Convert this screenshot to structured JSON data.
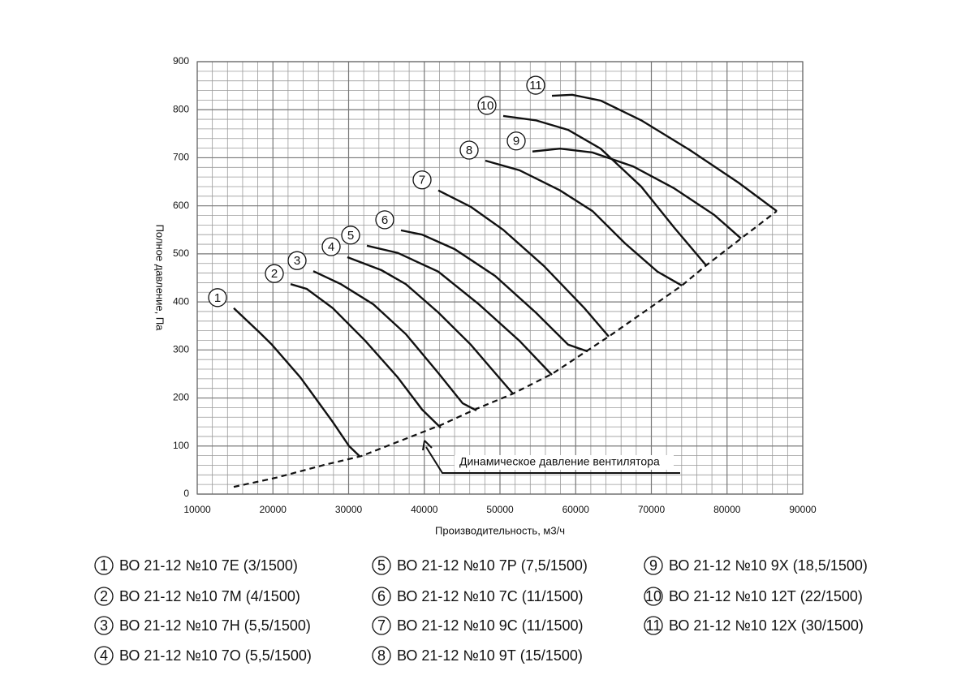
{
  "chart_data": {
    "type": "line",
    "xlabel": "Производительность, м3/ч",
    "ylabel": "Полное давление, Па",
    "xlim": [
      10000,
      90000
    ],
    "xticks": [
      10000,
      20000,
      30000,
      40000,
      50000,
      60000,
      70000,
      80000,
      90000
    ],
    "ylim": [
      0,
      900
    ],
    "yticks": [
      0,
      100,
      200,
      300,
      400,
      500,
      600,
      700,
      800,
      900
    ],
    "grid": true,
    "minor_grid_divisions": 5,
    "color": "#111111",
    "series": [
      {
        "label": "1",
        "name": "ВО 21-12 №10 7Е (3/1500)",
        "x": [
          14826,
          18257,
          19866,
          23620,
          27910,
          30054,
          31448
        ],
        "values": [
          387,
          336,
          311,
          243,
          150,
          100,
          79
        ]
      },
      {
        "label": "2",
        "name": "ВО 21-12 №10 7М (4/1500)",
        "x": [
          22333,
          24477,
          27910,
          32200,
          36490,
          39705,
          42172
        ],
        "values": [
          437,
          427,
          387,
          319,
          243,
          176,
          138
        ]
      },
      {
        "label": "3",
        "name": "ВО 21-12 №10 7Н (5,5/1500)",
        "x": [
          25335,
          28981,
          33271,
          37560,
          41850,
          45067,
          46890
        ],
        "values": [
          464,
          437,
          395,
          333,
          252,
          189,
          174
        ]
      },
      {
        "label": "4",
        "name": "ВО 21-12 №10 7О (5,5/1500)",
        "x": [
          29839,
          34343,
          37560,
          41850,
          46140,
          49357,
          51716
        ],
        "values": [
          493,
          466,
          437,
          378,
          311,
          252,
          209
        ]
      },
      {
        "label": "5",
        "name": "ВО 21-12 №10 7Р (7,5/1500)",
        "x": [
          32413,
          36490,
          41850,
          47212,
          52574,
          56863
        ],
        "values": [
          517,
          502,
          463,
          395,
          319,
          248
        ]
      },
      {
        "label": "6",
        "name": "ВО 21-12 №10 7С (11/1500)",
        "x": [
          36917,
          39705,
          43995,
          49357,
          54718,
          59008,
          61582
        ],
        "values": [
          549,
          540,
          510,
          454,
          378,
          311,
          297
        ]
      },
      {
        "label": "7",
        "name": "ВО 21-12 №10 9С (11/1500)",
        "x": [
          41850,
          46140,
          50429,
          55791,
          61153,
          64370
        ],
        "values": [
          632,
          598,
          550,
          475,
          387,
          328
        ]
      },
      {
        "label": "8",
        "name": "ВО 21-12 №10 9Т (15/1500)",
        "x": [
          48070,
          52574,
          57936,
          62225,
          66515,
          70804,
          74021
        ],
        "values": [
          694,
          674,
          632,
          589,
          522,
          463,
          434
        ]
      },
      {
        "label": "9",
        "name": "ВО 21-12 №10 9Х (18,5/1500)",
        "x": [
          54290,
          57936,
          62225,
          67587,
          72949,
          78311,
          81850
        ],
        "values": [
          713,
          719,
          711,
          682,
          637,
          581,
          532
        ]
      },
      {
        "label": "10",
        "name": "ВО 21-12 №10 12Т (22/1500)",
        "x": [
          50429,
          54718,
          59008,
          63297,
          68659,
          72949,
          77239
        ],
        "values": [
          787,
          778,
          758,
          719,
          640,
          556,
          476
        ]
      },
      {
        "label": "11",
        "name": "ВО 21-12 №10 12Х (30/1500)",
        "x": [
          56863,
          59544,
          63297,
          68659,
          75093,
          81528,
          86568
        ],
        "values": [
          829,
          831,
          819,
          778,
          716,
          648,
          589
        ]
      }
    ],
    "dynamic_pressure": {
      "name": "Динамическое давление вентилятора",
      "dashed": true,
      "x": [
        14826,
        20402,
        26836,
        31662,
        42386,
        46676,
        51716,
        56863,
        64370,
        74021,
        77239,
        81850,
        86568
      ],
      "values": [
        15,
        34,
        61,
        79,
        145,
        176,
        209,
        250,
        328,
        434,
        476,
        532,
        589
      ]
    }
  }
}
